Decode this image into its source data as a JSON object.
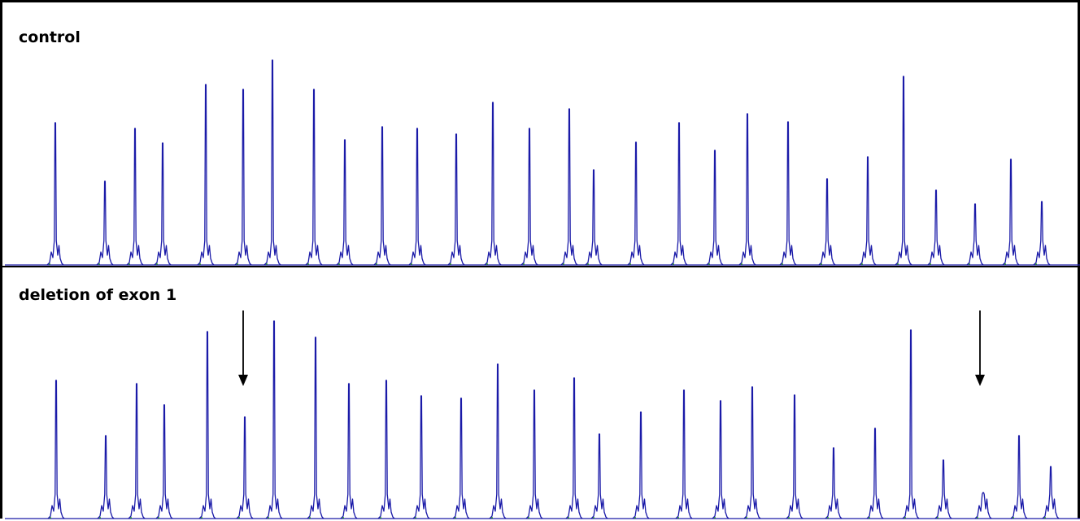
{
  "chart_data": [
    {
      "type": "line",
      "title": "control",
      "series": [
        {
          "peaks": [
            {
              "x": 65,
              "h": 175
            },
            {
              "x": 126,
              "h": 103
            },
            {
              "x": 163,
              "h": 168
            },
            {
              "x": 197,
              "h": 150
            },
            {
              "x": 250,
              "h": 222
            },
            {
              "x": 296,
              "h": 216
            },
            {
              "x": 332,
              "h": 252
            },
            {
              "x": 383,
              "h": 216
            },
            {
              "x": 421,
              "h": 154
            },
            {
              "x": 467,
              "h": 170
            },
            {
              "x": 510,
              "h": 168
            },
            {
              "x": 558,
              "h": 161
            },
            {
              "x": 603,
              "h": 200
            },
            {
              "x": 648,
              "h": 168
            },
            {
              "x": 697,
              "h": 192
            },
            {
              "x": 727,
              "h": 117
            },
            {
              "x": 779,
              "h": 151
            },
            {
              "x": 832,
              "h": 175
            },
            {
              "x": 876,
              "h": 141
            },
            {
              "x": 916,
              "h": 186
            },
            {
              "x": 966,
              "h": 176
            },
            {
              "x": 1014,
              "h": 106
            },
            {
              "x": 1064,
              "h": 133
            },
            {
              "x": 1108,
              "h": 232
            },
            {
              "x": 1148,
              "h": 92
            },
            {
              "x": 1196,
              "h": 75
            },
            {
              "x": 1240,
              "h": 130
            },
            {
              "x": 1278,
              "h": 78
            }
          ]
        }
      ]
    },
    {
      "type": "line",
      "title": "deletion of exon 1",
      "series": [
        {
          "peaks": [
            {
              "x": 66,
              "h": 170
            },
            {
              "x": 127,
              "h": 102
            },
            {
              "x": 165,
              "h": 166
            },
            {
              "x": 199,
              "h": 140
            },
            {
              "x": 252,
              "h": 230
            },
            {
              "x": 298,
              "h": 125
            },
            {
              "x": 334,
              "h": 243
            },
            {
              "x": 385,
              "h": 223
            },
            {
              "x": 426,
              "h": 166
            },
            {
              "x": 472,
              "h": 170
            },
            {
              "x": 515,
              "h": 151
            },
            {
              "x": 564,
              "h": 148
            },
            {
              "x": 609,
              "h": 190
            },
            {
              "x": 654,
              "h": 158
            },
            {
              "x": 703,
              "h": 173
            },
            {
              "x": 734,
              "h": 104
            },
            {
              "x": 785,
              "h": 131
            },
            {
              "x": 838,
              "h": 158
            },
            {
              "x": 883,
              "h": 145
            },
            {
              "x": 922,
              "h": 162
            },
            {
              "x": 974,
              "h": 152
            },
            {
              "x": 1022,
              "h": 87
            },
            {
              "x": 1073,
              "h": 111
            },
            {
              "x": 1117,
              "h": 232
            },
            {
              "x": 1157,
              "h": 72
            },
            {
              "x": 1206,
              "h": 32
            },
            {
              "x": 1250,
              "h": 102
            },
            {
              "x": 1289,
              "h": 64
            }
          ]
        }
      ],
      "annotations": [
        {
          "type": "arrow",
          "x": 296
        },
        {
          "type": "arrow",
          "x": 1202
        }
      ]
    }
  ]
}
